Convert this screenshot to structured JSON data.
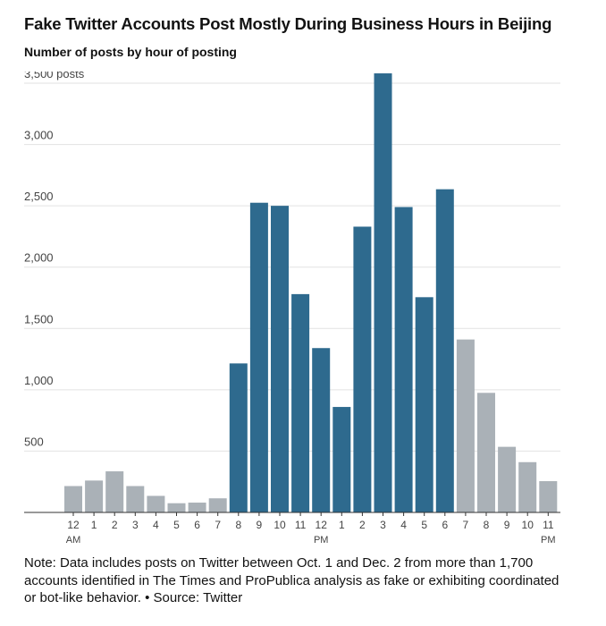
{
  "title": "Fake Twitter Accounts Post Mostly During Business Hours in Beijing",
  "subtitle": "Number of posts by hour of posting",
  "note": "Note: Data includes posts on Twitter between Oct. 1 and Dec. 2 from more than 1,700 accounts identified in The Times and ProPublica analysis as fake or exhibiting coordinated or bot-like behavior. • Source: Twitter",
  "colors": {
    "highlight": "#2e6a8e",
    "muted": "#aab1b7",
    "grid": "#e2e2e2",
    "axis": "#333333",
    "tick_text": "#444444"
  },
  "chart_data": {
    "type": "bar",
    "title": "Fake Twitter Accounts Post Mostly During Business Hours in Beijing",
    "subtitle": "Number of posts by hour of posting",
    "xlabel": "",
    "ylabel": "",
    "ylim": [
      0,
      3500
    ],
    "grid": true,
    "yticks": [
      500,
      1000,
      1500,
      2000,
      2500,
      3000,
      3500
    ],
    "ytick_labels": [
      "500",
      "1,000",
      "1,500",
      "2,000",
      "2,500",
      "3,000",
      "3,500 posts"
    ],
    "categories": [
      "12",
      "1",
      "2",
      "3",
      "4",
      "5",
      "6",
      "7",
      "8",
      "9",
      "10",
      "11",
      "12",
      "1",
      "2",
      "3",
      "4",
      "5",
      "6",
      "7",
      "8",
      "9",
      "10",
      "11"
    ],
    "category_sublabels": [
      "AM",
      "",
      "",
      "",
      "",
      "",
      "",
      "",
      "",
      "",
      "",
      "",
      "PM",
      "",
      "",
      "",
      "",
      "",
      "",
      "",
      "",
      "",
      "",
      "PM"
    ],
    "values": [
      215,
      260,
      335,
      215,
      135,
      75,
      80,
      115,
      1215,
      2525,
      2500,
      1780,
      1340,
      860,
      2330,
      3580,
      2490,
      1755,
      2635,
      1410,
      975,
      535,
      410,
      255
    ],
    "highlighted": [
      false,
      false,
      false,
      false,
      false,
      false,
      false,
      false,
      true,
      true,
      true,
      true,
      true,
      true,
      true,
      true,
      true,
      true,
      true,
      false,
      false,
      false,
      false,
      false
    ]
  }
}
